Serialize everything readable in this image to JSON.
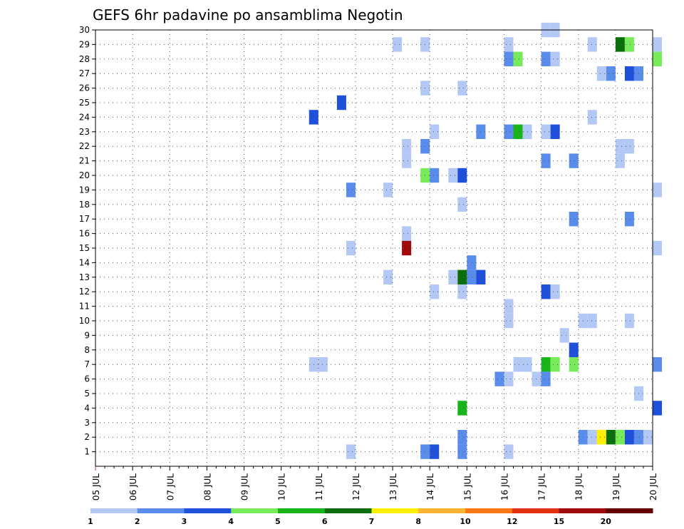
{
  "chart_data": {
    "type": "heatmap",
    "title": "GEFS 6hr padavine po ansamblima Negotin",
    "xlabel": "",
    "ylabel": "",
    "x_ticks": [
      "05 JUL",
      "06 JUL",
      "07 JUL",
      "08 JUL",
      "09 JUL",
      "10 JUL",
      "11 JUL",
      "12 JUL",
      "13 JUL",
      "14 JUL",
      "15 JUL",
      "16 JUL",
      "17 JUL",
      "18 JUL",
      "19 JUL",
      "20 JUL"
    ],
    "y_ticks": [
      "1",
      "2",
      "3",
      "4",
      "5",
      "6",
      "7",
      "8",
      "9",
      "10",
      "11",
      "12",
      "13",
      "14",
      "15",
      "16",
      "17",
      "18",
      "19",
      "20",
      "21",
      "22",
      "23",
      "24",
      "25",
      "26",
      "27",
      "28",
      "29",
      "30"
    ],
    "x_unit_steps_per_day": 4,
    "y_range": [
      0,
      30
    ],
    "grid": true,
    "colorbar": {
      "labels": [
        "1",
        "2",
        "3",
        "4",
        "5",
        "6",
        "7",
        "8",
        "10",
        "12",
        "15",
        "20"
      ],
      "colors": [
        "#b4c8f5",
        "#5a8ceb",
        "#1e50dc",
        "#78eb5a",
        "#19b419",
        "#0a6e0a",
        "#fff000",
        "#ffb432",
        "#ff7814",
        "#e63214",
        "#a00a0a",
        "#640000"
      ]
    },
    "cells": [
      {
        "x": "13 JUL 00",
        "y": 29,
        "c": 1
      },
      {
        "x": "13 JUL 18",
        "y": 29,
        "c": 1
      },
      {
        "x": "16 JUL 00",
        "y": 29,
        "c": 1
      },
      {
        "x": "18 JUL 06",
        "y": 29,
        "c": 1
      },
      {
        "x": "19 JUL 00",
        "y": 29,
        "c": 6
      },
      {
        "x": "19 JUL 06",
        "y": 29,
        "c": 4
      },
      {
        "x": "20 JUL 00",
        "y": 29,
        "c": 1
      },
      {
        "x": "17 JUL 00",
        "y": 30,
        "c": 1
      },
      {
        "x": "17 JUL 06",
        "y": 30,
        "c": 1
      },
      {
        "x": "16 JUL 00",
        "y": 28,
        "c": 2
      },
      {
        "x": "16 JUL 06",
        "y": 28,
        "c": 4
      },
      {
        "x": "17 JUL 00",
        "y": 28,
        "c": 2
      },
      {
        "x": "17 JUL 06",
        "y": 28,
        "c": 1
      },
      {
        "x": "20 JUL 00",
        "y": 28,
        "c": 4
      },
      {
        "x": "18 JUL 12",
        "y": 27,
        "c": 1
      },
      {
        "x": "18 JUL 18",
        "y": 27,
        "c": 2
      },
      {
        "x": "19 JUL 06",
        "y": 27,
        "c": 3
      },
      {
        "x": "19 JUL 12",
        "y": 27,
        "c": 2
      },
      {
        "x": "13 JUL 18",
        "y": 26,
        "c": 1
      },
      {
        "x": "14 JUL 18",
        "y": 26,
        "c": 1
      },
      {
        "x": "11 JUL 12",
        "y": 25,
        "c": 3
      },
      {
        "x": "10 JUL 18",
        "y": 24,
        "c": 3
      },
      {
        "x": "18 JUL 06",
        "y": 24,
        "c": 1
      },
      {
        "x": "14 JUL 00",
        "y": 23,
        "c": 1
      },
      {
        "x": "15 JUL 06",
        "y": 23,
        "c": 2
      },
      {
        "x": "16 JUL 00",
        "y": 23,
        "c": 2
      },
      {
        "x": "16 JUL 06",
        "y": 23,
        "c": 5
      },
      {
        "x": "16 JUL 12",
        "y": 23,
        "c": 1
      },
      {
        "x": "17 JUL 00",
        "y": 23,
        "c": 1
      },
      {
        "x": "17 JUL 06",
        "y": 23,
        "c": 3
      },
      {
        "x": "13 JUL 06",
        "y": 22,
        "c": 1
      },
      {
        "x": "13 JUL 18",
        "y": 22,
        "c": 2
      },
      {
        "x": "19 JUL 00",
        "y": 22,
        "c": 1
      },
      {
        "x": "19 JUL 06",
        "y": 22,
        "c": 1
      },
      {
        "x": "13 JUL 06",
        "y": 21,
        "c": 1
      },
      {
        "x": "17 JUL 00",
        "y": 21,
        "c": 2
      },
      {
        "x": "17 JUL 18",
        "y": 21,
        "c": 2
      },
      {
        "x": "19 JUL 00",
        "y": 21,
        "c": 1
      },
      {
        "x": "13 JUL 18",
        "y": 20,
        "c": 4
      },
      {
        "x": "14 JUL 00",
        "y": 20,
        "c": 2
      },
      {
        "x": "14 JUL 12",
        "y": 20,
        "c": 1
      },
      {
        "x": "14 JUL 18",
        "y": 20,
        "c": 3
      },
      {
        "x": "11 JUL 18",
        "y": 19,
        "c": 2
      },
      {
        "x": "12 JUL 18",
        "y": 19,
        "c": 1
      },
      {
        "x": "20 JUL 00",
        "y": 19,
        "c": 1
      },
      {
        "x": "14 JUL 18",
        "y": 18,
        "c": 1
      },
      {
        "x": "17 JUL 18",
        "y": 17,
        "c": 2
      },
      {
        "x": "19 JUL 06",
        "y": 17,
        "c": 2
      },
      {
        "x": "13 JUL 06",
        "y": 16,
        "c": 1
      },
      {
        "x": "11 JUL 18",
        "y": 15,
        "c": 1
      },
      {
        "x": "13 JUL 06",
        "y": 15,
        "c": 11
      },
      {
        "x": "20 JUL 00",
        "y": 15,
        "c": 1
      },
      {
        "x": "15 JUL 00",
        "y": 14,
        "c": 2
      },
      {
        "x": "12 JUL 18",
        "y": 13,
        "c": 1
      },
      {
        "x": "14 JUL 12",
        "y": 13,
        "c": 1
      },
      {
        "x": "14 JUL 18",
        "y": 13,
        "c": 6
      },
      {
        "x": "15 JUL 00",
        "y": 13,
        "c": 2
      },
      {
        "x": "15 JUL 06",
        "y": 13,
        "c": 3
      },
      {
        "x": "14 JUL 00",
        "y": 12,
        "c": 1
      },
      {
        "x": "14 JUL 18",
        "y": 12,
        "c": 1
      },
      {
        "x": "17 JUL 00",
        "y": 12,
        "c": 3
      },
      {
        "x": "17 JUL 06",
        "y": 12,
        "c": 1
      },
      {
        "x": "16 JUL 00",
        "y": 11,
        "c": 1
      },
      {
        "x": "16 JUL 00",
        "y": 10,
        "c": 1
      },
      {
        "x": "18 JUL 00",
        "y": 10,
        "c": 1
      },
      {
        "x": "18 JUL 06",
        "y": 10,
        "c": 1
      },
      {
        "x": "19 JUL 06",
        "y": 10,
        "c": 1
      },
      {
        "x": "17 JUL 12",
        "y": 9,
        "c": 1
      },
      {
        "x": "17 JUL 18",
        "y": 8,
        "c": 3
      },
      {
        "x": "10 JUL 18",
        "y": 7,
        "c": 1
      },
      {
        "x": "11 JUL 00",
        "y": 7,
        "c": 1
      },
      {
        "x": "16 JUL 06",
        "y": 7,
        "c": 1
      },
      {
        "x": "16 JUL 12",
        "y": 7,
        "c": 1
      },
      {
        "x": "17 JUL 00",
        "y": 7,
        "c": 5
      },
      {
        "x": "17 JUL 06",
        "y": 7,
        "c": 4
      },
      {
        "x": "17 JUL 18",
        "y": 7,
        "c": 4
      },
      {
        "x": "20 JUL 00",
        "y": 7,
        "c": 2
      },
      {
        "x": "15 JUL 18",
        "y": 6,
        "c": 2
      },
      {
        "x": "16 JUL 00",
        "y": 6,
        "c": 1
      },
      {
        "x": "16 JUL 18",
        "y": 6,
        "c": 1
      },
      {
        "x": "17 JUL 00",
        "y": 6,
        "c": 2
      },
      {
        "x": "19 JUL 12",
        "y": 5,
        "c": 1
      },
      {
        "x": "14 JUL 18",
        "y": 4,
        "c": 5
      },
      {
        "x": "20 JUL 00",
        "y": 4,
        "c": 3
      },
      {
        "x": "14 JUL 18",
        "y": 2,
        "c": 2
      },
      {
        "x": "18 JUL 00",
        "y": 2,
        "c": 2
      },
      {
        "x": "18 JUL 06",
        "y": 2,
        "c": 1
      },
      {
        "x": "18 JUL 12",
        "y": 2,
        "c": 7
      },
      {
        "x": "18 JUL 18",
        "y": 2,
        "c": 6
      },
      {
        "x": "19 JUL 00",
        "y": 2,
        "c": 4
      },
      {
        "x": "19 JUL 06",
        "y": 2,
        "c": 3
      },
      {
        "x": "19 JUL 12",
        "y": 2,
        "c": 2
      },
      {
        "x": "19 JUL 18",
        "y": 2,
        "c": 1
      },
      {
        "x": "11 JUL 18",
        "y": 1,
        "c": 1
      },
      {
        "x": "13 JUL 18",
        "y": 1,
        "c": 2
      },
      {
        "x": "14 JUL 00",
        "y": 1,
        "c": 3
      },
      {
        "x": "14 JUL 18",
        "y": 1,
        "c": 2
      },
      {
        "x": "16 JUL 00",
        "y": 1,
        "c": 1
      }
    ]
  }
}
